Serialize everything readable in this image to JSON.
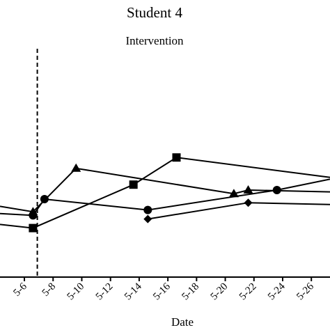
{
  "chart_data": {
    "type": "line",
    "title": "Student 4",
    "phase_label": "Intervention",
    "xlabel": "Date",
    "ylabel": "",
    "x_ticks": [
      "5-6",
      "5-8",
      "5-10",
      "5-12",
      "5-14",
      "5-16",
      "5-18",
      "5-20",
      "5-22",
      "5-24",
      "5-26"
    ],
    "x_tick_days": [
      6,
      8,
      10,
      12,
      14,
      16,
      18,
      20,
      22,
      24,
      26
    ],
    "xlim": [
      4.3,
      27.3
    ],
    "ylim": [
      0,
      100
    ],
    "phase_line_day": 6.9,
    "grid": false,
    "series": [
      {
        "marker": "triangle",
        "points": [
          {
            "x": 4.3,
            "y": 36
          },
          {
            "x": 6.6,
            "y": 33
          },
          {
            "x": 9.6,
            "y": 57
          },
          {
            "x": 20.6,
            "y": 43
          },
          {
            "x": 21.6,
            "y": 45
          },
          {
            "x": 27.3,
            "y": 44
          }
        ]
      },
      {
        "marker": "circle",
        "points": [
          {
            "x": 4.3,
            "y": 32
          },
          {
            "x": 6.6,
            "y": 31
          },
          {
            "x": 7.4,
            "y": 40
          },
          {
            "x": 14.6,
            "y": 34
          },
          {
            "x": 23.6,
            "y": 45
          },
          {
            "x": 27.3,
            "y": 51
          }
        ]
      },
      {
        "marker": "square",
        "points": [
          {
            "x": 4.3,
            "y": 26
          },
          {
            "x": 6.6,
            "y": 24
          },
          {
            "x": 13.6,
            "y": 48
          },
          {
            "x": 16.6,
            "y": 63
          },
          {
            "x": 27.3,
            "y": 52
          }
        ]
      },
      {
        "marker": "diamond",
        "points": [
          {
            "x": 14.6,
            "y": 29
          },
          {
            "x": 21.6,
            "y": 38
          },
          {
            "x": 27.3,
            "y": 37
          }
        ]
      }
    ]
  }
}
